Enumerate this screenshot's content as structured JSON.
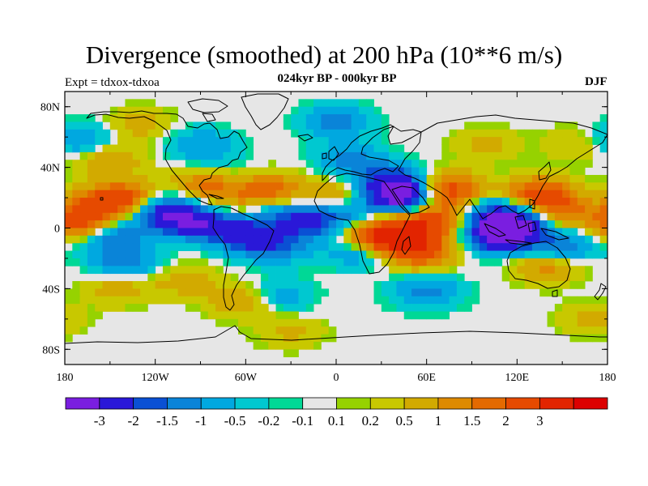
{
  "header": {
    "title": "Divergence (smoothed) at 200 hPa (10**6 m/s)",
    "subtitle": "024kyr BP - 000kyr BP",
    "left_label": "Expt = tdxox-tdxoa",
    "right_label": "DJF"
  },
  "map": {
    "projection": "cylindrical-equidistant",
    "lon_range": [
      -180,
      180
    ],
    "lat_range": [
      -90,
      90
    ],
    "lat_ticks": [
      {
        "value": 80,
        "label": "80N"
      },
      {
        "value": 40,
        "label": "40N"
      },
      {
        "value": 0,
        "label": "0"
      },
      {
        "value": -40,
        "label": "40S"
      },
      {
        "value": -80,
        "label": "80S"
      }
    ],
    "lon_ticks": [
      {
        "value": -180,
        "label": "180"
      },
      {
        "value": -120,
        "label": "120W"
      },
      {
        "value": -60,
        "label": "60W"
      },
      {
        "value": 0,
        "label": "0"
      },
      {
        "value": 60,
        "label": "60E"
      },
      {
        "value": 120,
        "label": "120E"
      },
      {
        "value": 180,
        "label": "180"
      }
    ],
    "neutral_color": "#e6e6e6",
    "coast_color": "#000000",
    "field_blobs": [
      {
        "lon": -115,
        "lat": 12,
        "value": -2
      },
      {
        "lon": -100,
        "lat": 4,
        "value": -2.2
      },
      {
        "lon": -75,
        "lat": 4,
        "value": -1.8
      },
      {
        "lon": -60,
        "lat": -5,
        "value": -1.8
      },
      {
        "lon": -50,
        "lat": 14,
        "value": -1.3
      },
      {
        "lon": -40,
        "lat": -12,
        "value": -1.5
      },
      {
        "lon": -20,
        "lat": 5,
        "value": -2.3
      },
      {
        "lon": 10,
        "lat": 8,
        "value": -1.1
      },
      {
        "lon": 15,
        "lat": -15,
        "value": -1.2
      },
      {
        "lon": 45,
        "lat": 20,
        "value": -3.2
      },
      {
        "lon": 35,
        "lat": 30,
        "value": -2.3
      },
      {
        "lon": 95,
        "lat": 10,
        "value": -2.3
      },
      {
        "lon": 110,
        "lat": -5,
        "value": -3.5
      },
      {
        "lon": 120,
        "lat": 5,
        "value": -2.5
      },
      {
        "lon": 150,
        "lat": -12,
        "value": -1.6
      },
      {
        "lon": -150,
        "lat": -5,
        "value": -1.6
      },
      {
        "lon": -140,
        "lat": -22,
        "value": -1.3
      },
      {
        "lon": -170,
        "lat": 58,
        "value": -1.1
      },
      {
        "lon": -90,
        "lat": 55,
        "value": -1.0
      },
      {
        "lon": -80,
        "lat": 35,
        "value": -1.0
      },
      {
        "lon": 10,
        "lat": 45,
        "value": -1.2
      },
      {
        "lon": 0,
        "lat": 70,
        "value": -1.2
      },
      {
        "lon": 60,
        "lat": -42,
        "value": -1.2
      },
      {
        "lon": -40,
        "lat": -45,
        "value": -1.0
      },
      {
        "lon": -140,
        "lat": 20,
        "value": 2.2
      },
      {
        "lon": -160,
        "lat": 15,
        "value": 1.6
      },
      {
        "lon": -170,
        "lat": 2,
        "value": 2.2
      },
      {
        "lon": -85,
        "lat": 30,
        "value": 2.2
      },
      {
        "lon": -45,
        "lat": 24,
        "value": 2.2
      },
      {
        "lon": -65,
        "lat": 12,
        "value": 1.6
      },
      {
        "lon": 0,
        "lat": 22,
        "value": 1.0
      },
      {
        "lon": 25,
        "lat": -5,
        "value": 2.3
      },
      {
        "lon": 40,
        "lat": -5,
        "value": 2.0
      },
      {
        "lon": 55,
        "lat": -15,
        "value": 2.5
      },
      {
        "lon": 60,
        "lat": 5,
        "value": 2.3
      },
      {
        "lon": 75,
        "lat": 25,
        "value": 2.5
      },
      {
        "lon": 85,
        "lat": 10,
        "value": 1.5
      },
      {
        "lon": 135,
        "lat": 22,
        "value": 2.5
      },
      {
        "lon": 150,
        "lat": 10,
        "value": 1.5
      },
      {
        "lon": 140,
        "lat": -25,
        "value": 1.3
      },
      {
        "lon": -150,
        "lat": 45,
        "value": 1.0
      },
      {
        "lon": -100,
        "lat": -35,
        "value": 0.8
      },
      {
        "lon": -60,
        "lat": -48,
        "value": 1.2
      },
      {
        "lon": -145,
        "lat": -40,
        "value": 0.8
      },
      {
        "lon": 170,
        "lat": -60,
        "value": 0.6
      },
      {
        "lon": -130,
        "lat": 68,
        "value": 0.7
      },
      {
        "lon": 100,
        "lat": 55,
        "value": 0.6
      },
      {
        "lon": 160,
        "lat": 55,
        "value": 0.6
      },
      {
        "lon": -30,
        "lat": -68,
        "value": 0.6
      }
    ]
  },
  "colorbar": {
    "colors": [
      "#7a1ee0",
      "#2a18d8",
      "#0a50d4",
      "#0a84d8",
      "#00a8e0",
      "#00c8d0",
      "#00d896",
      "#e6e6e6",
      "#96d200",
      "#c8c800",
      "#d2aa00",
      "#de8a00",
      "#e46a00",
      "#e64a00",
      "#e22400",
      "#dc0000"
    ],
    "thresholds": [
      -3,
      -2,
      -1.5,
      -1,
      -0.5,
      -0.2,
      -0.1,
      0.1,
      0.2,
      0.5,
      1,
      1.5,
      2,
      3
    ],
    "labels": [
      "-3",
      "-2",
      "-1.5",
      "-1",
      "-0.5",
      "-0.2",
      "-0.1",
      "0.1",
      "0.2",
      "0.5",
      "1",
      "1.5",
      "2",
      "3"
    ]
  }
}
